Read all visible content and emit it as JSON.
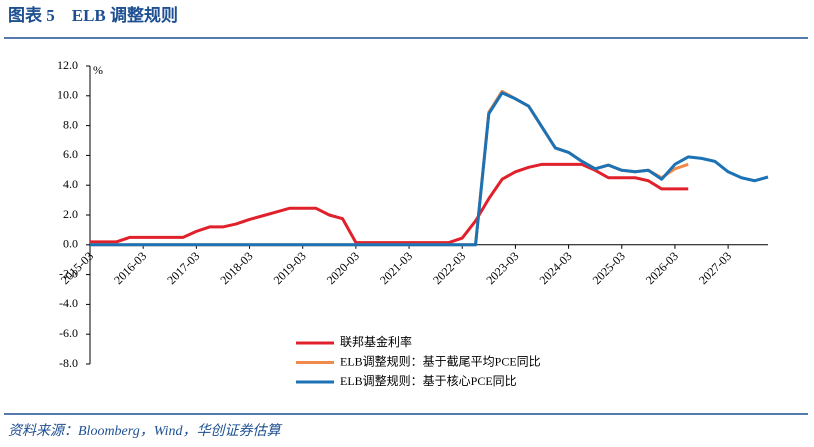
{
  "chart_data": {
    "type": "line",
    "title": "图表 5　ELB 调整规则",
    "source": "资料来源：Bloomberg，Wind，华创证券估算",
    "ylabel": "%",
    "x": [
      "2015-03",
      "2015-06",
      "2015-09",
      "2015-12",
      "2016-03",
      "2016-06",
      "2016-09",
      "2016-12",
      "2017-03",
      "2017-06",
      "2017-09",
      "2017-12",
      "2018-03",
      "2018-06",
      "2018-09",
      "2018-12",
      "2019-03",
      "2019-06",
      "2019-09",
      "2019-12",
      "2020-03",
      "2020-06",
      "2020-09",
      "2020-12",
      "2021-03",
      "2021-06",
      "2021-09",
      "2021-12",
      "2022-03",
      "2022-06",
      "2022-09",
      "2022-12",
      "2023-03",
      "2023-06",
      "2023-09",
      "2023-12",
      "2024-03",
      "2024-06",
      "2024-09",
      "2024-12",
      "2025-03",
      "2025-06",
      "2025-09",
      "2025-12",
      "2026-03",
      "2026-06",
      "2026-09",
      "2026-12",
      "2027-03",
      "2027-06",
      "2027-09",
      "2027-12"
    ],
    "series": [
      {
        "name": "联邦基金利率",
        "color": "#e0202a",
        "values": [
          0.2,
          0.2,
          0.2,
          0.5,
          0.5,
          0.5,
          0.5,
          0.5,
          0.9,
          1.2,
          1.2,
          1.4,
          1.7,
          1.95,
          2.2,
          2.45,
          2.45,
          2.45,
          2.0,
          1.75,
          0.15,
          0.15,
          0.15,
          0.15,
          0.15,
          0.15,
          0.15,
          0.15,
          0.45,
          1.6,
          3.1,
          4.4,
          4.9,
          5.2,
          5.4,
          5.4,
          5.4,
          5.4,
          5.0,
          4.5,
          4.5,
          4.5,
          4.3,
          3.75,
          3.75,
          3.75,
          null,
          null,
          null,
          null,
          null,
          null
        ]
      },
      {
        "name": "ELB调整规则：基于截尾平均PCE同比",
        "color": "#f08a4b",
        "values": [
          0,
          0,
          0,
          0,
          0,
          0,
          0,
          0,
          0,
          0,
          0,
          0,
          0,
          0,
          0,
          0,
          0,
          0,
          0,
          0,
          0,
          0,
          0,
          0,
          0,
          0,
          0,
          0,
          0,
          0,
          8.9,
          10.3,
          9.8,
          9.3,
          7.9,
          6.5,
          6.2,
          5.6,
          5.1,
          5.35,
          5.0,
          4.9,
          5.0,
          4.5,
          5.1,
          5.4,
          null,
          null,
          null,
          null,
          null,
          null
        ]
      },
      {
        "name": "ELB调整规则：基于核心PCE同比",
        "color": "#1b72b5",
        "values": [
          0,
          0,
          0,
          0,
          0,
          0,
          0,
          0,
          0,
          0,
          0,
          0,
          0,
          0,
          0,
          0,
          0,
          0,
          0,
          0,
          0,
          0,
          0,
          0,
          0,
          0,
          0,
          0,
          0,
          0,
          8.8,
          10.2,
          9.8,
          9.3,
          7.9,
          6.5,
          6.2,
          5.6,
          5.1,
          5.35,
          5.0,
          4.9,
          5.0,
          4.4,
          5.4,
          5.9,
          5.8,
          5.6,
          4.9,
          4.5,
          4.3,
          4.55
        ]
      }
    ],
    "xlim": [
      "2015-03",
      "2027-12"
    ],
    "xticks": [
      "2015-03",
      "2016-03",
      "2017-03",
      "2018-03",
      "2019-03",
      "2020-03",
      "2021-03",
      "2022-03",
      "2023-03",
      "2024-03",
      "2025-03",
      "2026-03",
      "2027-03"
    ],
    "ylim": [
      -8,
      12
    ],
    "yticks": [
      {
        "value": -8,
        "label": "-8.0"
      },
      {
        "value": -6,
        "label": "-6.0"
      },
      {
        "value": -4,
        "label": "-4.0"
      },
      {
        "value": -2,
        "label": "-2.0"
      },
      {
        "value": 0,
        "label": "0.0"
      },
      {
        "value": 2,
        "label": "2.0"
      },
      {
        "value": 4,
        "label": "4.0"
      },
      {
        "value": 6,
        "label": "6.0"
      },
      {
        "value": 8,
        "label": "8.0"
      },
      {
        "value": 10,
        "label": "10.0"
      },
      {
        "value": 12,
        "label": "12.0"
      }
    ],
    "legend": "bottom",
    "grid": false
  }
}
